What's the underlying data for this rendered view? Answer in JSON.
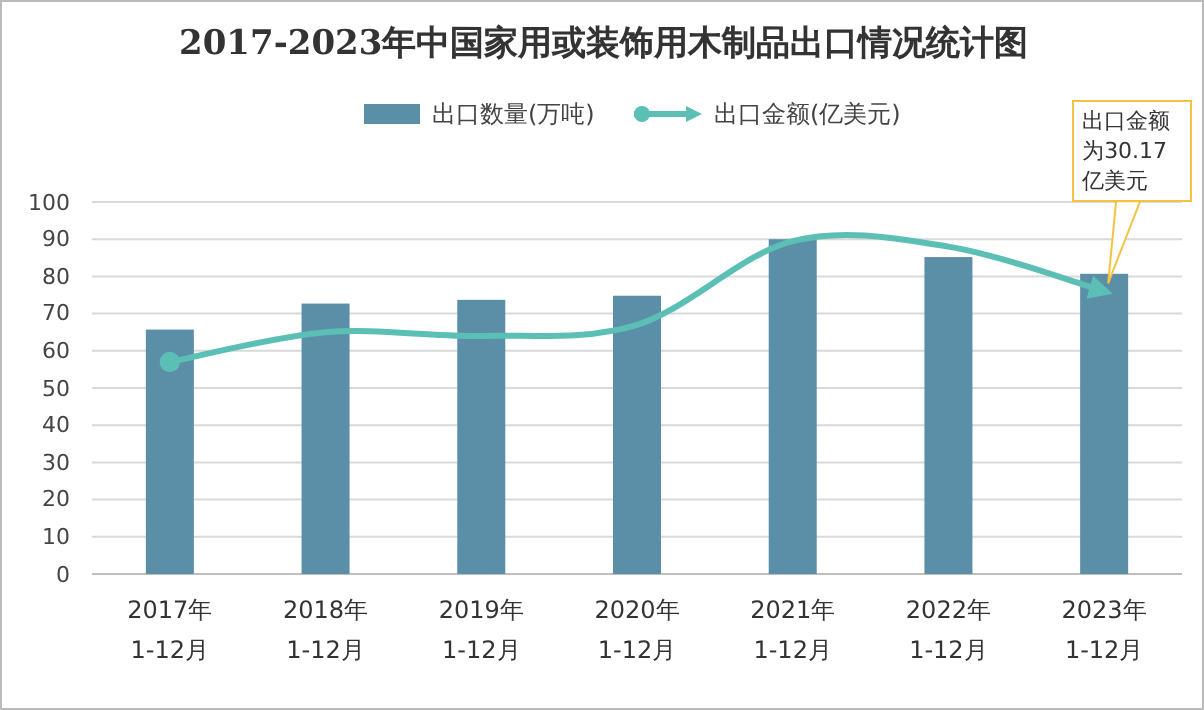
{
  "chart_data": {
    "type": "bar",
    "title": "2017-2023年中国家用或装饰用木制品出口情况统计图",
    "categories": [
      "2017年1-12月",
      "2018年1-12月",
      "2019年1-12月",
      "2020年1-12月",
      "2021年1-12月",
      "2022年1-12月",
      "2023年1-12月"
    ],
    "series": [
      {
        "name": "出口数量(万吨)",
        "color": "#5b8fa8",
        "values": [
          65.7,
          72.7,
          73.7,
          74.8,
          90,
          85.2,
          80.7
        ]
      },
      {
        "name": "出口金额(亿美元)",
        "type": "line",
        "color": "#5bbfb5",
        "values": [
          57,
          65,
          64,
          67,
          89.5,
          88,
          76
        ]
      }
    ],
    "ylim": [
      0,
      100
    ],
    "yticks": [
      0,
      10,
      20,
      30,
      40,
      50,
      60,
      70,
      80,
      90,
      100
    ],
    "grid": "y",
    "legend": "top",
    "annotations": [
      {
        "text": "出口金额为30.17亿美元",
        "x": "2023年1-12月",
        "y": 76
      }
    ]
  }
}
